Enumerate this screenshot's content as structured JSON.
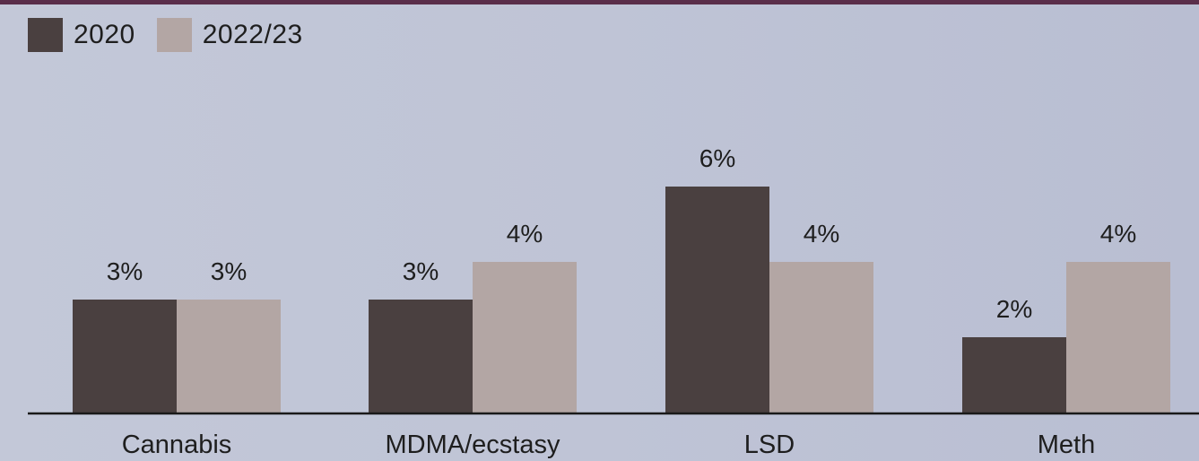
{
  "chart_data": {
    "type": "bar",
    "categories": [
      "Cannabis",
      "MDMA/ecstasy",
      "LSD",
      "Meth"
    ],
    "series": [
      {
        "name": "2020",
        "values": [
          3,
          3,
          6,
          2
        ],
        "labels": [
          "3%",
          "3%",
          "6%",
          "2%"
        ],
        "color": "#4a4040"
      },
      {
        "name": "2022/23",
        "values": [
          3,
          4,
          4,
          4
        ],
        "labels": [
          "3%",
          "4%",
          "4%",
          "4%"
        ],
        "color": "#b3a6a4"
      }
    ],
    "unit": "%",
    "ylim": [
      0,
      6
    ],
    "grid": false,
    "legend_position": "top-left"
  },
  "colors": {
    "accent_bar": "#5a2e4a",
    "axis": "#1a1a1a",
    "text": "#1e1e1e"
  }
}
